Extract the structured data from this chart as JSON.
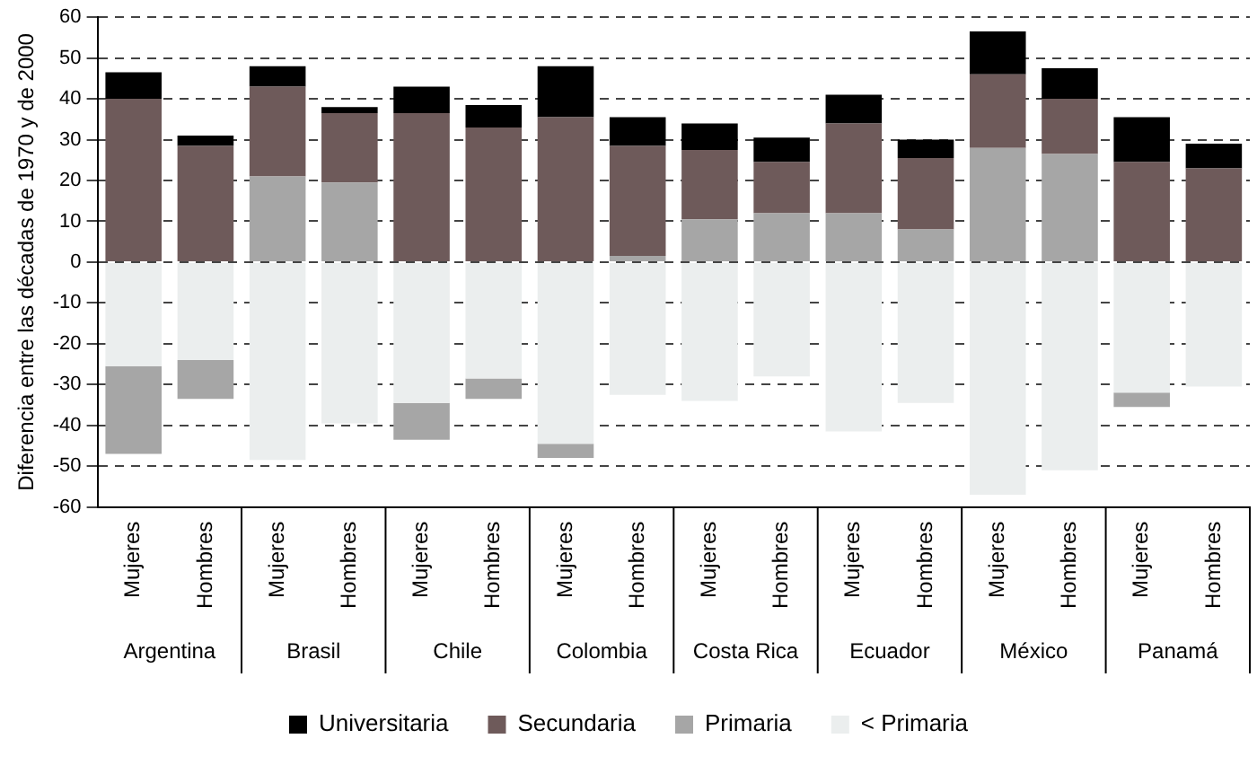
{
  "chart_data": {
    "type": "bar",
    "stacked": true,
    "ylabel": "Diferencia entre las décadas de 1970 y de 2000",
    "categories": [
      "Mujeres",
      "Hombres",
      "Mujeres",
      "Hombres",
      "Mujeres",
      "Hombres",
      "Mujeres",
      "Hombres",
      "Mujeres",
      "Hombres",
      "Mujeres",
      "Hombres",
      "Mujeres",
      "Hombres",
      "Mujeres",
      "Hombres"
    ],
    "annotations": [
      "Argentina",
      "Brasil",
      "Chile",
      "Colombia",
      "Costa Rica",
      "Ecuador",
      "México",
      "Panamá"
    ],
    "series": [
      {
        "name": "< Primaria",
        "color": "#ebeeee",
        "values": [
          -25.5,
          -24,
          -48.5,
          -39.5,
          -34.5,
          -28.5,
          -44.5,
          -32.5,
          -34,
          -28,
          -41.5,
          -34.5,
          -57,
          -51,
          -32,
          -30.5
        ]
      },
      {
        "name": "Primaria",
        "color": "#a6a6a6",
        "values": [
          -21.5,
          -9.5,
          21,
          19.5,
          -9,
          -5,
          -3.5,
          1.5,
          10.5,
          12,
          12,
          8,
          28,
          26.5,
          -3.5,
          0
        ]
      },
      {
        "name": "Secundaria",
        "color": "#6e5a5a",
        "values": [
          40,
          28.5,
          22,
          17,
          36.5,
          33,
          35.5,
          27,
          17,
          12.5,
          22,
          17.5,
          18,
          13.5,
          24.5,
          23
        ]
      },
      {
        "name": "Universitaria",
        "color": "#000000",
        "values": [
          6.5,
          2.5,
          5,
          1.5,
          6.5,
          5.5,
          12.5,
          7,
          6.5,
          6,
          7,
          4.5,
          10.5,
          7.5,
          11,
          6
        ]
      }
    ],
    "ylim": [
      -60,
      60
    ],
    "yticks": [
      -60,
      -50,
      -40,
      -30,
      -20,
      -10,
      0,
      10,
      20,
      30,
      40,
      50,
      60
    ],
    "grid": "y",
    "legend": "bottom"
  }
}
